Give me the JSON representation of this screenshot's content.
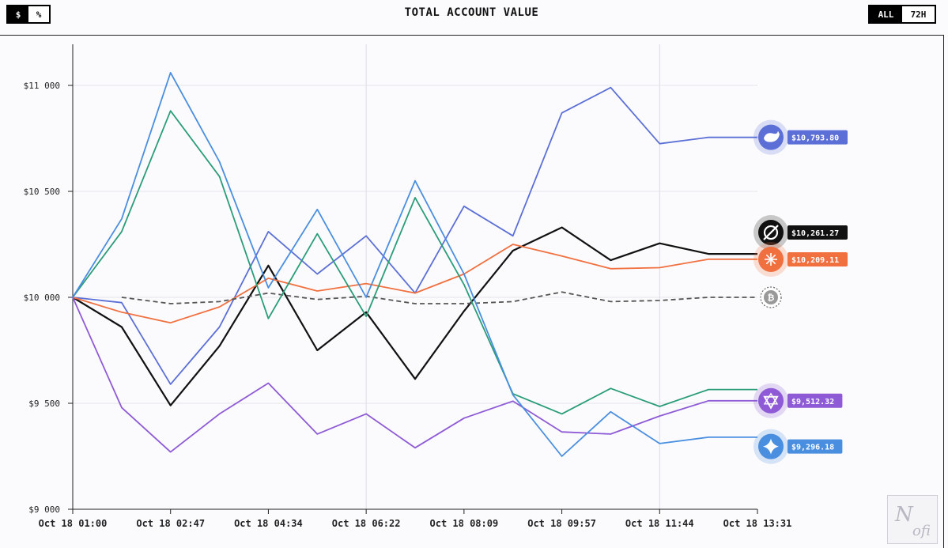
{
  "header": {
    "unit_toggle": {
      "dollar_label": "$",
      "percent_label": "%",
      "active": "dollar"
    },
    "range_toggle": {
      "all_label": "ALL",
      "h72_label": "72H",
      "active": "all"
    }
  },
  "logo": {
    "text": "Nofi"
  },
  "chart_data": {
    "type": "line",
    "title": "TOTAL ACCOUNT VALUE",
    "xlabel": "",
    "ylabel": "",
    "x": [
      "Oct 18 01:00",
      "",
      "Oct 18 02:47",
      "",
      "Oct 18 04:34",
      "",
      "Oct 18 06:22",
      "",
      "Oct 18 08:09",
      "",
      "Oct 18 09:57",
      "",
      "Oct 18 11:44",
      "",
      "Oct 18 13:31"
    ],
    "x_tick_labels": [
      "Oct 18 01:00",
      "Oct 18 02:47",
      "Oct 18 04:34",
      "Oct 18 06:22",
      "Oct 18 08:09",
      "Oct 18 09:57",
      "Oct 18 11:44",
      "Oct 18 13:31"
    ],
    "y_tick_labels": [
      "$11 000",
      "$10 500",
      "$10 000",
      "$9 500",
      "$9 000"
    ],
    "y_ticks": [
      11000,
      10500,
      10000,
      9500,
      9000
    ],
    "ylim": [
      9000,
      11200
    ],
    "grid": true,
    "series": [
      {
        "color": "#5b6fd6",
        "icon": "whale-icon",
        "last_label": "$10,793.80",
        "values": [
          10000,
          9975,
          9590,
          9860,
          10310,
          10110,
          10290,
          10020,
          10430,
          10290,
          10870,
          10990,
          10725,
          10755,
          10755
        ]
      },
      {
        "color": "#111111",
        "icon": "circle-slash-icon",
        "last_label": "$10,261.27",
        "values": [
          10000,
          9860,
          9490,
          9770,
          10150,
          9750,
          9930,
          9615,
          9935,
          10220,
          10330,
          10175,
          10255,
          10205,
          10205
        ]
      },
      {
        "color": "#f07040",
        "icon": "burst-icon",
        "last_label": "$10,209.11",
        "values": [
          10000,
          9930,
          9880,
          9955,
          10090,
          10030,
          10065,
          10020,
          10110,
          10250,
          10195,
          10135,
          10140,
          10180,
          10180
        ]
      },
      {
        "color": "#555555",
        "icon": "bitcoin-icon",
        "last_label": "",
        "dashed": true,
        "values": [
          null,
          10000,
          9970,
          9980,
          10020,
          9990,
          10005,
          9970,
          9970,
          9980,
          10025,
          9980,
          9985,
          10000,
          10000
        ]
      },
      {
        "color": "#8e5ad6",
        "icon": "knot-icon",
        "last_label": "$9,512.32",
        "values": [
          10000,
          9480,
          9270,
          9450,
          9595,
          9355,
          9450,
          9290,
          9430,
          9510,
          9365,
          9355,
          9440,
          9512,
          9512
        ]
      },
      {
        "color": "#2a9d78",
        "icon": "",
        "last_label": "",
        "values": [
          10000,
          10310,
          10880,
          10570,
          9900,
          10300,
          9910,
          10470,
          10060,
          9545,
          9450,
          9570,
          9485,
          9565,
          9565
        ]
      },
      {
        "color": "#4a8ee0",
        "icon": "sparkle-icon",
        "last_label": "$9,296.18",
        "values": [
          10000,
          10370,
          11060,
          10640,
          10045,
          10415,
          10000,
          10550,
          10110,
          9540,
          9250,
          9460,
          9310,
          9340,
          9340
        ]
      }
    ]
  }
}
